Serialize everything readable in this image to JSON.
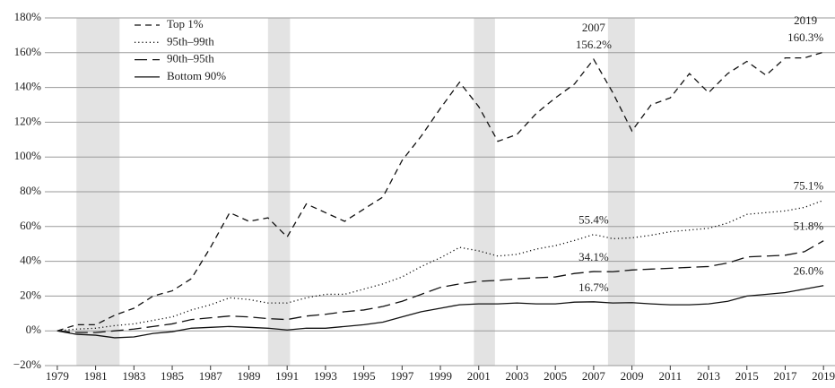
{
  "chart_data": {
    "type": "line",
    "x": [
      1979,
      1980,
      1981,
      1982,
      1983,
      1984,
      1985,
      1986,
      1987,
      1988,
      1989,
      1990,
      1991,
      1992,
      1993,
      1994,
      1995,
      1996,
      1997,
      1998,
      1999,
      2000,
      2001,
      2002,
      2003,
      2004,
      2005,
      2006,
      2007,
      2008,
      2009,
      2010,
      2011,
      2012,
      2013,
      2014,
      2015,
      2016,
      2017,
      2018,
      2019
    ],
    "series": [
      {
        "name": "Top 1%",
        "color": "#111111",
        "line_style": "dashed",
        "values": [
          0,
          3.5,
          3.5,
          9,
          13,
          20,
          23,
          30,
          48,
          68,
          63,
          65,
          54,
          73,
          68,
          63,
          70,
          77,
          98,
          112,
          128,
          143,
          129,
          109,
          113,
          125,
          134,
          142,
          156.2,
          137,
          115,
          130,
          134,
          148,
          137,
          148,
          155,
          147,
          157,
          157,
          160.3
        ],
        "value_labels": [
          null,
          null,
          null,
          null,
          null,
          null,
          null,
          null,
          null,
          null,
          null,
          null,
          null,
          null,
          null,
          null,
          null,
          null,
          null,
          null,
          null,
          null,
          null,
          null,
          null,
          null,
          null,
          null,
          "156.2%",
          null,
          null,
          null,
          null,
          null,
          null,
          null,
          null,
          null,
          null,
          null,
          "160.3%"
        ]
      },
      {
        "name": "95th–99th",
        "color": "#111111",
        "line_style": "dotted",
        "values": [
          0,
          1,
          1.5,
          3,
          4,
          6,
          8,
          12,
          15,
          19,
          18,
          16,
          16,
          19,
          21,
          21,
          24,
          27,
          31,
          37,
          42,
          48,
          46,
          43,
          44,
          47,
          49,
          52,
          55.4,
          53,
          53.5,
          55,
          57,
          58,
          59,
          62,
          67,
          68,
          69,
          71,
          75.1
        ],
        "value_labels": [
          null,
          null,
          null,
          null,
          null,
          null,
          null,
          null,
          null,
          null,
          null,
          null,
          null,
          null,
          null,
          null,
          null,
          null,
          null,
          null,
          null,
          null,
          null,
          null,
          null,
          null,
          null,
          null,
          "55.4%",
          null,
          null,
          null,
          null,
          null,
          null,
          null,
          null,
          null,
          null,
          null,
          "75.1%"
        ]
      },
      {
        "name": "90th–95th",
        "color": "#111111",
        "line_style": "longdash",
        "values": [
          0,
          -1,
          -1,
          0,
          1,
          2.5,
          4,
          6.5,
          7.5,
          8.5,
          8,
          7,
          6.5,
          8.5,
          9.5,
          11,
          12,
          14,
          17,
          21,
          25,
          27,
          28.5,
          29,
          30,
          30.5,
          31,
          33,
          34.1,
          34,
          35,
          35.5,
          36,
          36.5,
          37,
          39,
          42.5,
          43,
          43.5,
          45.5,
          51.8
        ],
        "value_labels": [
          null,
          null,
          null,
          null,
          null,
          null,
          null,
          null,
          null,
          null,
          null,
          null,
          null,
          null,
          null,
          null,
          null,
          null,
          null,
          null,
          null,
          null,
          null,
          null,
          null,
          null,
          null,
          null,
          "34.1%",
          null,
          null,
          null,
          null,
          null,
          null,
          null,
          null,
          null,
          null,
          null,
          "51.8%"
        ]
      },
      {
        "name": "Bottom 90%",
        "color": "#111111",
        "line_style": "solid",
        "values": [
          0,
          -2,
          -2.5,
          -4,
          -3.5,
          -1.5,
          -0.5,
          1.5,
          2,
          2.5,
          2,
          1.5,
          0.5,
          1.5,
          1.5,
          2.5,
          3.5,
          5,
          8,
          11,
          13,
          15,
          15.5,
          15.5,
          16,
          15.5,
          15.5,
          16.5,
          16.7,
          16,
          16.2,
          15.5,
          15,
          15,
          15.5,
          17,
          20,
          21,
          22,
          24,
          26.0
        ],
        "value_labels": [
          null,
          null,
          null,
          null,
          null,
          null,
          null,
          null,
          null,
          null,
          null,
          null,
          null,
          null,
          null,
          null,
          null,
          null,
          null,
          null,
          null,
          null,
          null,
          null,
          null,
          null,
          null,
          null,
          "16.7%",
          null,
          null,
          null,
          null,
          null,
          null,
          null,
          null,
          null,
          null,
          null,
          "26.0%"
        ]
      }
    ],
    "recessions": [
      [
        1980,
        1982.25
      ],
      [
        1990,
        1991.15
      ],
      [
        2000.75,
        2001.85
      ],
      [
        2007.75,
        2009.15
      ]
    ],
    "recession_color": "#e3e3e3",
    "xlim": [
      1978.35,
      2019.6
    ],
    "xticks": [
      1979,
      1981,
      1983,
      1985,
      1987,
      1989,
      1991,
      1993,
      1995,
      1997,
      1999,
      2001,
      2003,
      2005,
      2007,
      2009,
      2011,
      2013,
      2015,
      2017,
      2019
    ],
    "ylim": [
      -20,
      180
    ],
    "yticks": [
      {
        "value": -20,
        "label": "−20%"
      },
      {
        "value": 0,
        "label": "0%"
      },
      {
        "value": 20,
        "label": "20%"
      },
      {
        "value": 40,
        "label": "40%"
      },
      {
        "value": 60,
        "label": "60%"
      },
      {
        "value": 80,
        "label": "80%"
      },
      {
        "value": 100,
        "label": "100%"
      },
      {
        "value": 120,
        "label": "120%"
      },
      {
        "value": 140,
        "label": "140%"
      },
      {
        "value": 160,
        "label": "160%"
      },
      {
        "value": 180,
        "label": "180%"
      }
    ],
    "grid": true,
    "legend": "top-left"
  }
}
